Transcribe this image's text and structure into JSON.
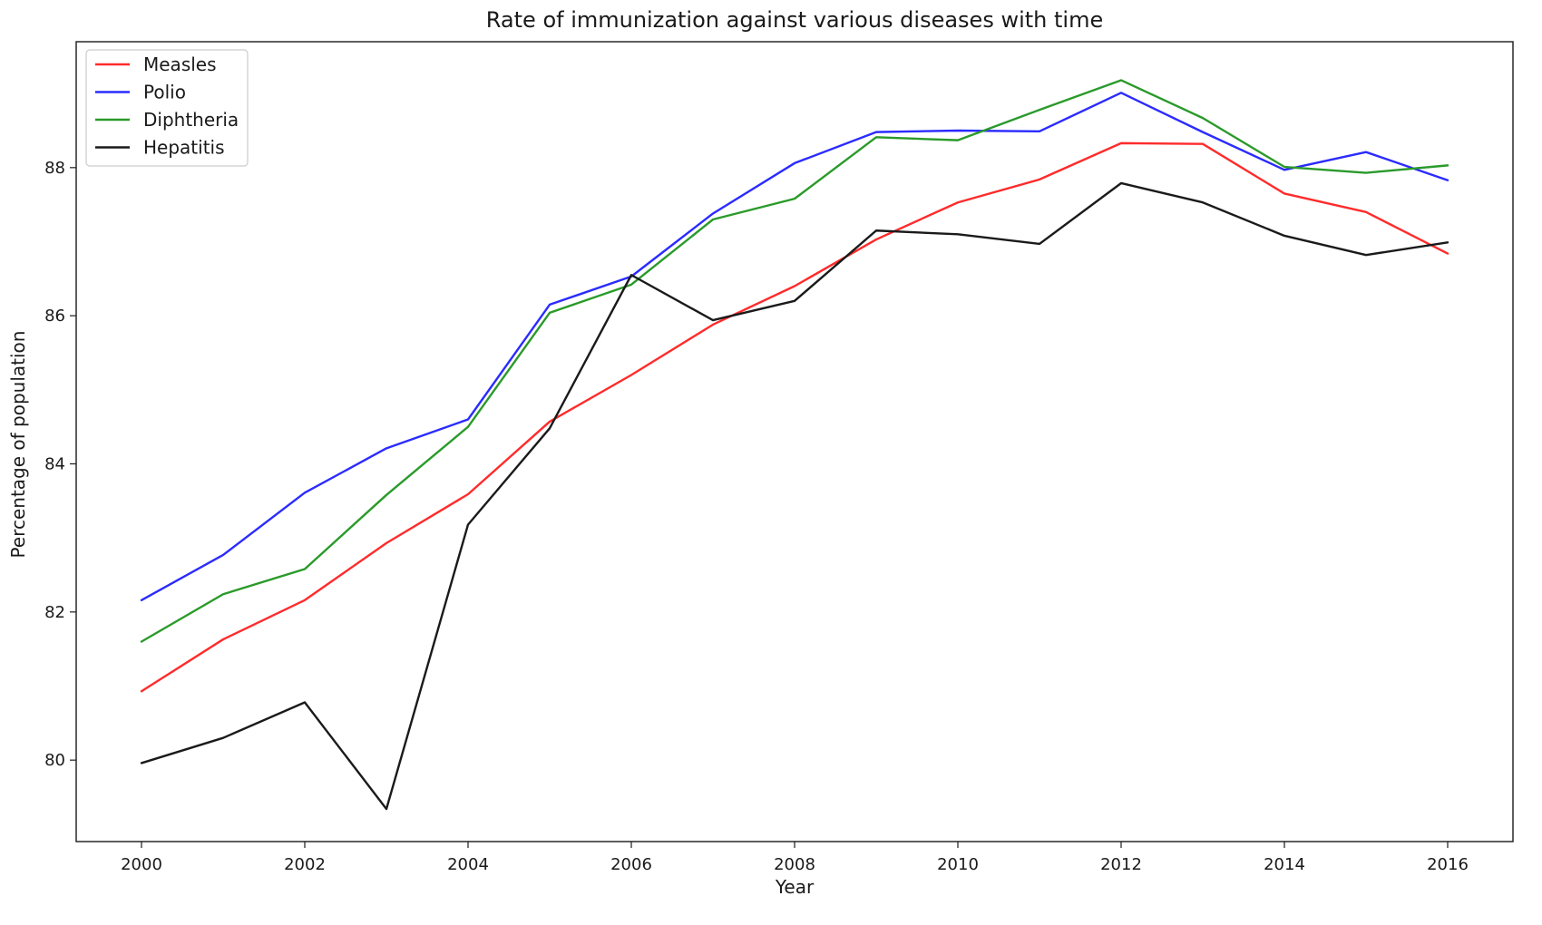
{
  "chart_data": {
    "type": "line",
    "title": "Rate of immunization against various diseases with time",
    "xlabel": "Year",
    "ylabel": "Percentage of population",
    "x": [
      2000,
      2001,
      2002,
      2003,
      2004,
      2005,
      2006,
      2007,
      2008,
      2009,
      2010,
      2011,
      2012,
      2013,
      2014,
      2015,
      2016
    ],
    "xlim": [
      1999.2,
      2016.8
    ],
    "ylim": [
      78.9,
      89.7
    ],
    "xticks": [
      2000,
      2002,
      2004,
      2006,
      2008,
      2010,
      2012,
      2014,
      2016
    ],
    "yticks": [
      80,
      82,
      84,
      86,
      88
    ],
    "grid": false,
    "legend_position": "top-left",
    "series": [
      {
        "name": "Measles",
        "color": "#ff2b2b",
        "values": [
          80.93,
          81.63,
          82.16,
          82.93,
          83.59,
          84.57,
          85.2,
          85.88,
          86.4,
          87.03,
          87.53,
          87.84,
          88.33,
          88.32,
          87.65,
          87.4,
          86.84
        ]
      },
      {
        "name": "Polio",
        "color": "#2b2bff",
        "values": [
          82.16,
          82.77,
          83.61,
          84.21,
          84.6,
          86.15,
          86.53,
          87.38,
          88.06,
          88.48,
          88.5,
          88.49,
          89.01,
          88.48,
          87.97,
          88.21,
          87.83
        ]
      },
      {
        "name": "Diphtheria",
        "color": "#2a9a2a",
        "values": [
          81.6,
          82.24,
          82.58,
          83.58,
          84.5,
          86.04,
          86.42,
          87.3,
          87.58,
          88.41,
          88.37,
          88.78,
          89.18,
          88.67,
          88.01,
          87.93,
          88.03
        ]
      },
      {
        "name": "Hepatitis",
        "color": "#1a1a1a",
        "values": [
          79.96,
          80.3,
          80.78,
          79.34,
          83.18,
          84.48,
          86.55,
          85.94,
          86.2,
          87.15,
          87.1,
          86.97,
          87.79,
          87.53,
          87.08,
          86.82,
          86.99
        ]
      }
    ]
  }
}
